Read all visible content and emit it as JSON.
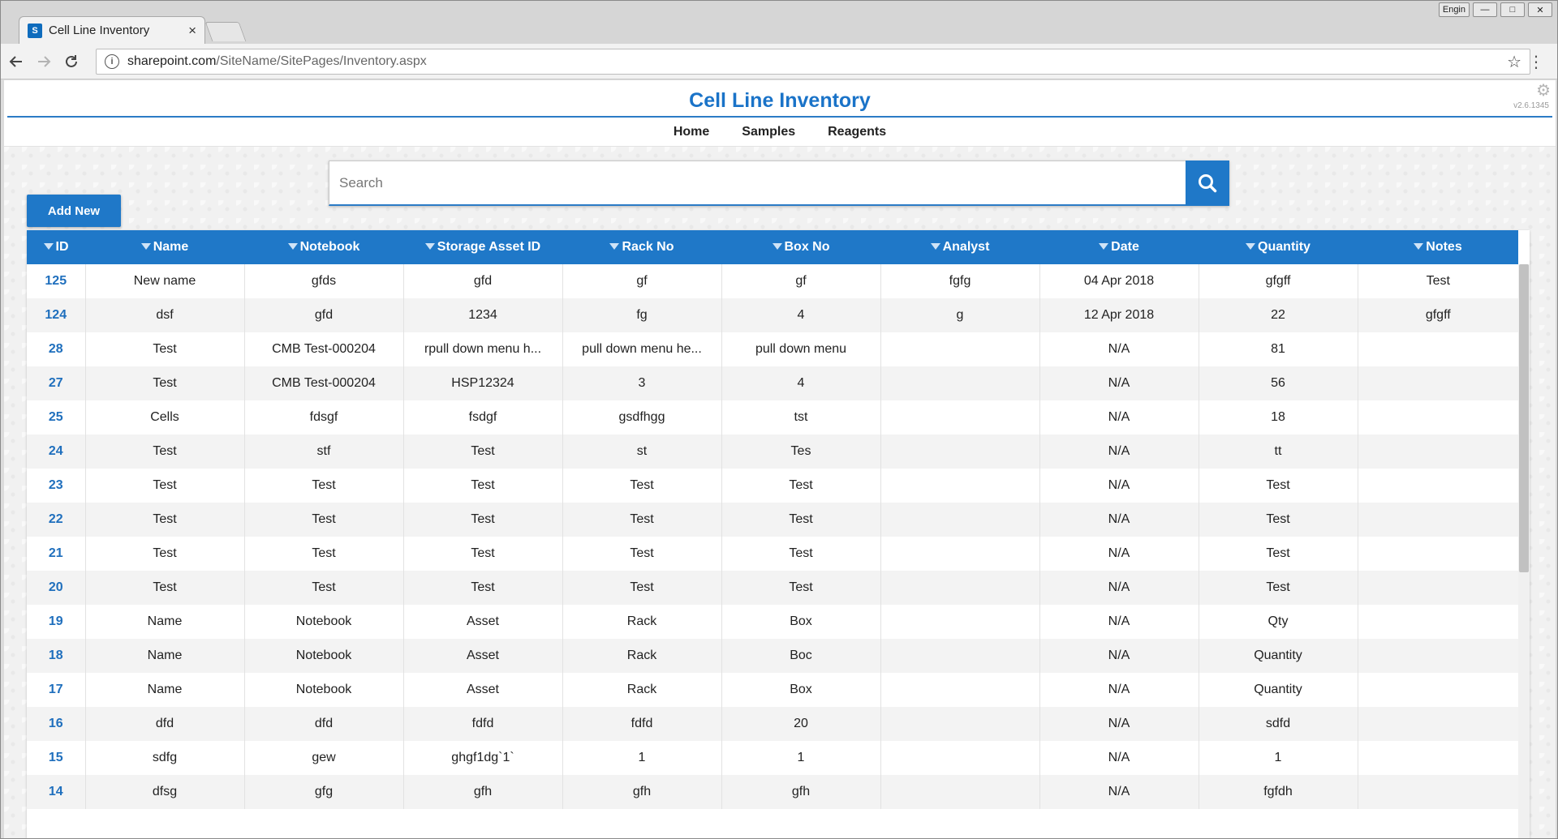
{
  "browser": {
    "tab_title": "Cell Line Inventory",
    "tab_close": "×",
    "favicon_text": "S",
    "url_host": "sharepoint.com",
    "url_path": "/SiteName/SitePages/Inventory.aspx",
    "lang_button": "Engin",
    "win_min": "—",
    "win_max": "□",
    "win_close": "✕"
  },
  "site": {
    "title": "Cell Line Inventory",
    "version": "v2.6.1345"
  },
  "nav": [
    "Home",
    "Samples",
    "Reagents"
  ],
  "search": {
    "placeholder": "Search"
  },
  "actions": {
    "add_new": "Add New"
  },
  "table": {
    "columns": [
      "ID",
      "Name",
      "Notebook",
      "Storage Asset ID",
      "Rack No",
      "Box No",
      "Analyst",
      "Date",
      "Quantity",
      "Notes"
    ],
    "rows": [
      [
        "125",
        "New name",
        "gfds",
        "gfd",
        "gf",
        "gf",
        "fgfg",
        "04 Apr 2018",
        "gfgff",
        "Test"
      ],
      [
        "124",
        "dsf",
        "gfd",
        "1234",
        "fg",
        "4",
        "g",
        "12 Apr 2018",
        "22",
        "gfgff"
      ],
      [
        "28",
        "Test",
        "CMB Test-000204",
        "rpull down menu h...",
        "pull down menu he...",
        "pull down menu",
        "",
        "N/A",
        "81",
        ""
      ],
      [
        "27",
        "Test",
        "CMB Test-000204",
        "HSP12324",
        "3",
        "4",
        "",
        "N/A",
        "56",
        ""
      ],
      [
        "25",
        "Cells",
        "fdsgf",
        "fsdgf",
        "gsdfhgg",
        "tst",
        "",
        "N/A",
        "18",
        ""
      ],
      [
        "24",
        "Test",
        "stf",
        "Test",
        "st",
        "Tes",
        "",
        "N/A",
        "tt",
        ""
      ],
      [
        "23",
        "Test",
        "Test",
        "Test",
        "Test",
        "Test",
        "",
        "N/A",
        "Test",
        ""
      ],
      [
        "22",
        "Test",
        "Test",
        "Test",
        "Test",
        "Test",
        "",
        "N/A",
        "Test",
        ""
      ],
      [
        "21",
        "Test",
        "Test",
        "Test",
        "Test",
        "Test",
        "",
        "N/A",
        "Test",
        ""
      ],
      [
        "20",
        "Test",
        "Test",
        "Test",
        "Test",
        "Test",
        "",
        "N/A",
        "Test",
        ""
      ],
      [
        "19",
        "Name",
        "Notebook",
        "Asset",
        "Rack",
        "Box",
        "",
        "N/A",
        "Qty",
        ""
      ],
      [
        "18",
        "Name",
        "Notebook",
        "Asset",
        "Rack",
        "Boc",
        "",
        "N/A",
        "Quantity",
        ""
      ],
      [
        "17",
        "Name",
        "Notebook",
        "Asset",
        "Rack",
        "Box",
        "",
        "N/A",
        "Quantity",
        ""
      ],
      [
        "16",
        "dfd",
        "dfd",
        "fdfd",
        "fdfd",
        "20",
        "",
        "N/A",
        "sdfd",
        ""
      ],
      [
        "15",
        "sdfg",
        "gew",
        "ghgf1dg`1`",
        "1",
        "1",
        "",
        "N/A",
        "1",
        ""
      ],
      [
        "14",
        "dfsg",
        "gfg",
        "gfh",
        "gfh",
        "gfh",
        "",
        "N/A",
        "fgfdh",
        ""
      ]
    ]
  },
  "colors": {
    "accent": "#1f78c8",
    "id_link": "#1f6fbd"
  }
}
